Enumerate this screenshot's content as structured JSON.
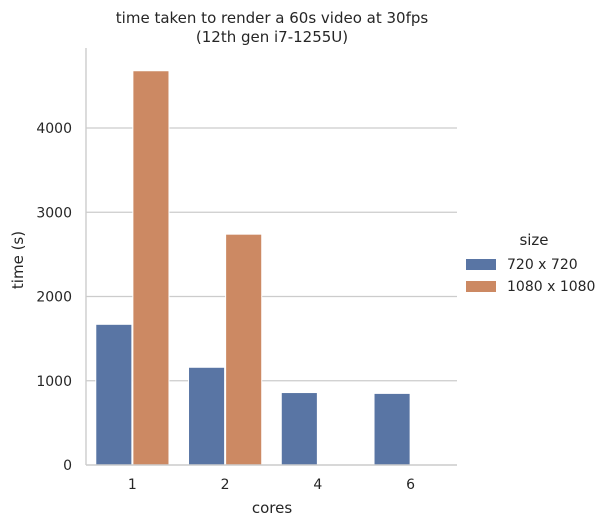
{
  "chart_data": {
    "type": "bar",
    "title_lines": [
      "time taken to render a 60s video at 30fps",
      "(12th gen i7-1255U)"
    ],
    "xlabel": "cores",
    "ylabel": "time (s)",
    "categories": [
      "1",
      "2",
      "4",
      "6"
    ],
    "series": [
      {
        "name": "720 x 720",
        "color": "#5975a4",
        "values": [
          1670,
          1160,
          860,
          850
        ]
      },
      {
        "name": "1080 x 1080",
        "color": "#cc8963",
        "values": [
          4680,
          2740,
          null,
          null
        ]
      }
    ],
    "ylim": [
      0,
      4950
    ],
    "yticks": [
      0,
      1000,
      2000,
      3000,
      4000
    ],
    "grid": "horizontal",
    "legend": {
      "title": "size",
      "position": "right"
    }
  }
}
